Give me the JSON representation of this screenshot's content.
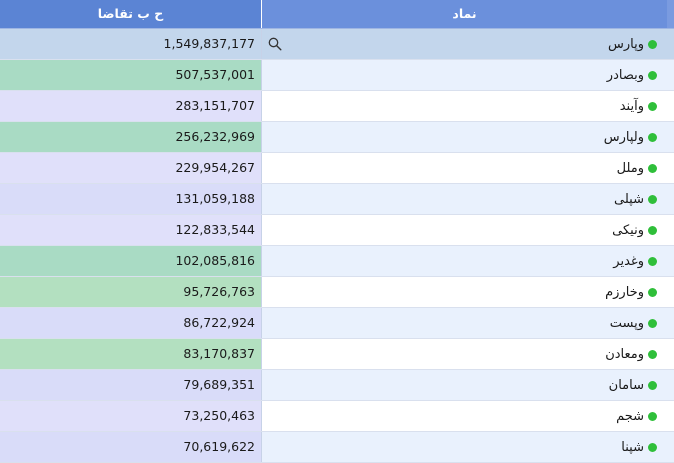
{
  "header": {
    "col_demand": "ح ب تقاضا",
    "col_symbol": "نماد"
  },
  "colors": {
    "status_dot": "#2fbf3a",
    "header_bg": "#5b84d4",
    "highlight_green": "#a9dbc4",
    "highlight_lavender": "#e0e0fa"
  },
  "rows": [
    {
      "symbol": "وپارس",
      "value": "1,549,837,177",
      "tone": "top"
    },
    {
      "symbol": "وبصادر",
      "value": "507,537,001",
      "tone": "green"
    },
    {
      "symbol": "وآیند",
      "value": "283,151,707",
      "tone": "lav"
    },
    {
      "symbol": "ولپارس",
      "value": "256,232,969",
      "tone": "green"
    },
    {
      "symbol": "وملل",
      "value": "229,954,267",
      "tone": "lav"
    },
    {
      "symbol": "شپلی",
      "value": "131,059,188",
      "tone": "lav2"
    },
    {
      "symbol": "ونیکی",
      "value": "122,833,544",
      "tone": "lav"
    },
    {
      "symbol": "وغدیر",
      "value": "102,085,816",
      "tone": "green"
    },
    {
      "symbol": "وخارزم",
      "value": "95,726,763",
      "tone": "green2"
    },
    {
      "symbol": "وپست",
      "value": "86,722,924",
      "tone": "lav2"
    },
    {
      "symbol": "ومعادن",
      "value": "83,170,837",
      "tone": "green2"
    },
    {
      "symbol": "سامان",
      "value": "79,689,351",
      "tone": "lav2"
    },
    {
      "symbol": "شجم",
      "value": "73,250,463",
      "tone": "lav"
    },
    {
      "symbol": "شپنا",
      "value": "70,619,622",
      "tone": "lav2"
    }
  ]
}
